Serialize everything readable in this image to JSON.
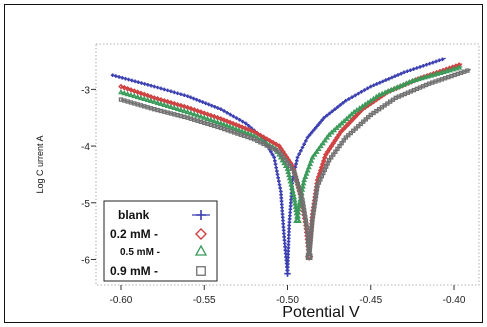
{
  "chart_data": {
    "type": "line",
    "title": "",
    "xlabel": "Potential  V",
    "ylabel": "Log C urrent  A",
    "xlim": [
      -0.615,
      -0.385
    ],
    "ylim": [
      -6.45,
      -2.2
    ],
    "x_ticks": [
      -0.6,
      -0.55,
      -0.5,
      -0.45,
      -0.4
    ],
    "x_tick_labels": [
      "-0.60",
      "-0.55",
      "-0.50",
      "-0.45",
      "-0.40"
    ],
    "y_ticks": [
      -3,
      -4,
      -5,
      -6
    ],
    "y_tick_labels": [
      "-3",
      "-4",
      "-5",
      "-6"
    ],
    "grid": false,
    "legend_position": "bottom-left",
    "series": [
      {
        "name": "blank",
        "marker": "plus",
        "color": "#3b3fb0",
        "points": [
          [
            -0.605,
            -2.75
          ],
          [
            -0.58,
            -2.95
          ],
          [
            -0.56,
            -3.12
          ],
          [
            -0.54,
            -3.35
          ],
          [
            -0.525,
            -3.6
          ],
          [
            -0.515,
            -3.85
          ],
          [
            -0.508,
            -4.2
          ],
          [
            -0.504,
            -4.8
          ],
          [
            -0.502,
            -5.6
          ],
          [
            -0.5,
            -6.25
          ],
          [
            -0.499,
            -5.4
          ],
          [
            -0.497,
            -4.6
          ],
          [
            -0.494,
            -4.2
          ],
          [
            -0.488,
            -3.85
          ],
          [
            -0.478,
            -3.5
          ],
          [
            -0.465,
            -3.2
          ],
          [
            -0.45,
            -2.95
          ],
          [
            -0.43,
            -2.7
          ],
          [
            -0.405,
            -2.45
          ]
        ]
      },
      {
        "name": "0.2 mM -",
        "marker": "diamond",
        "color": "#d04040",
        "points": [
          [
            -0.6,
            -2.95
          ],
          [
            -0.58,
            -3.15
          ],
          [
            -0.56,
            -3.32
          ],
          [
            -0.54,
            -3.52
          ],
          [
            -0.52,
            -3.75
          ],
          [
            -0.505,
            -4.0
          ],
          [
            -0.497,
            -4.35
          ],
          [
            -0.492,
            -4.9
          ],
          [
            -0.489,
            -5.4
          ],
          [
            -0.487,
            -5.95
          ],
          [
            -0.485,
            -5.2
          ],
          [
            -0.482,
            -4.6
          ],
          [
            -0.477,
            -4.15
          ],
          [
            -0.468,
            -3.75
          ],
          [
            -0.455,
            -3.35
          ],
          [
            -0.44,
            -3.05
          ],
          [
            -0.42,
            -2.8
          ],
          [
            -0.395,
            -2.55
          ]
        ]
      },
      {
        "name": "0.5 mM -",
        "marker": "triangle",
        "color": "#3a9a5a",
        "points": [
          [
            -0.6,
            -3.05
          ],
          [
            -0.58,
            -3.22
          ],
          [
            -0.56,
            -3.4
          ],
          [
            -0.54,
            -3.6
          ],
          [
            -0.52,
            -3.82
          ],
          [
            -0.507,
            -4.05
          ],
          [
            -0.5,
            -4.4
          ],
          [
            -0.496,
            -4.9
          ],
          [
            -0.494,
            -5.3
          ],
          [
            -0.493,
            -5.05
          ],
          [
            -0.49,
            -4.6
          ],
          [
            -0.485,
            -4.2
          ],
          [
            -0.475,
            -3.8
          ],
          [
            -0.46,
            -3.4
          ],
          [
            -0.445,
            -3.1
          ],
          [
            -0.425,
            -2.85
          ],
          [
            -0.395,
            -2.6
          ]
        ]
      },
      {
        "name": "0.9 mM -",
        "marker": "square",
        "color": "#707070",
        "points": [
          [
            -0.6,
            -3.18
          ],
          [
            -0.58,
            -3.35
          ],
          [
            -0.56,
            -3.5
          ],
          [
            -0.54,
            -3.68
          ],
          [
            -0.52,
            -3.88
          ],
          [
            -0.505,
            -4.1
          ],
          [
            -0.496,
            -4.45
          ],
          [
            -0.491,
            -4.95
          ],
          [
            -0.488,
            -5.5
          ],
          [
            -0.487,
            -5.95
          ],
          [
            -0.485,
            -5.3
          ],
          [
            -0.482,
            -4.7
          ],
          [
            -0.475,
            -4.25
          ],
          [
            -0.465,
            -3.85
          ],
          [
            -0.45,
            -3.45
          ],
          [
            -0.435,
            -3.15
          ],
          [
            -0.415,
            -2.9
          ],
          [
            -0.39,
            -2.65
          ]
        ]
      }
    ]
  }
}
